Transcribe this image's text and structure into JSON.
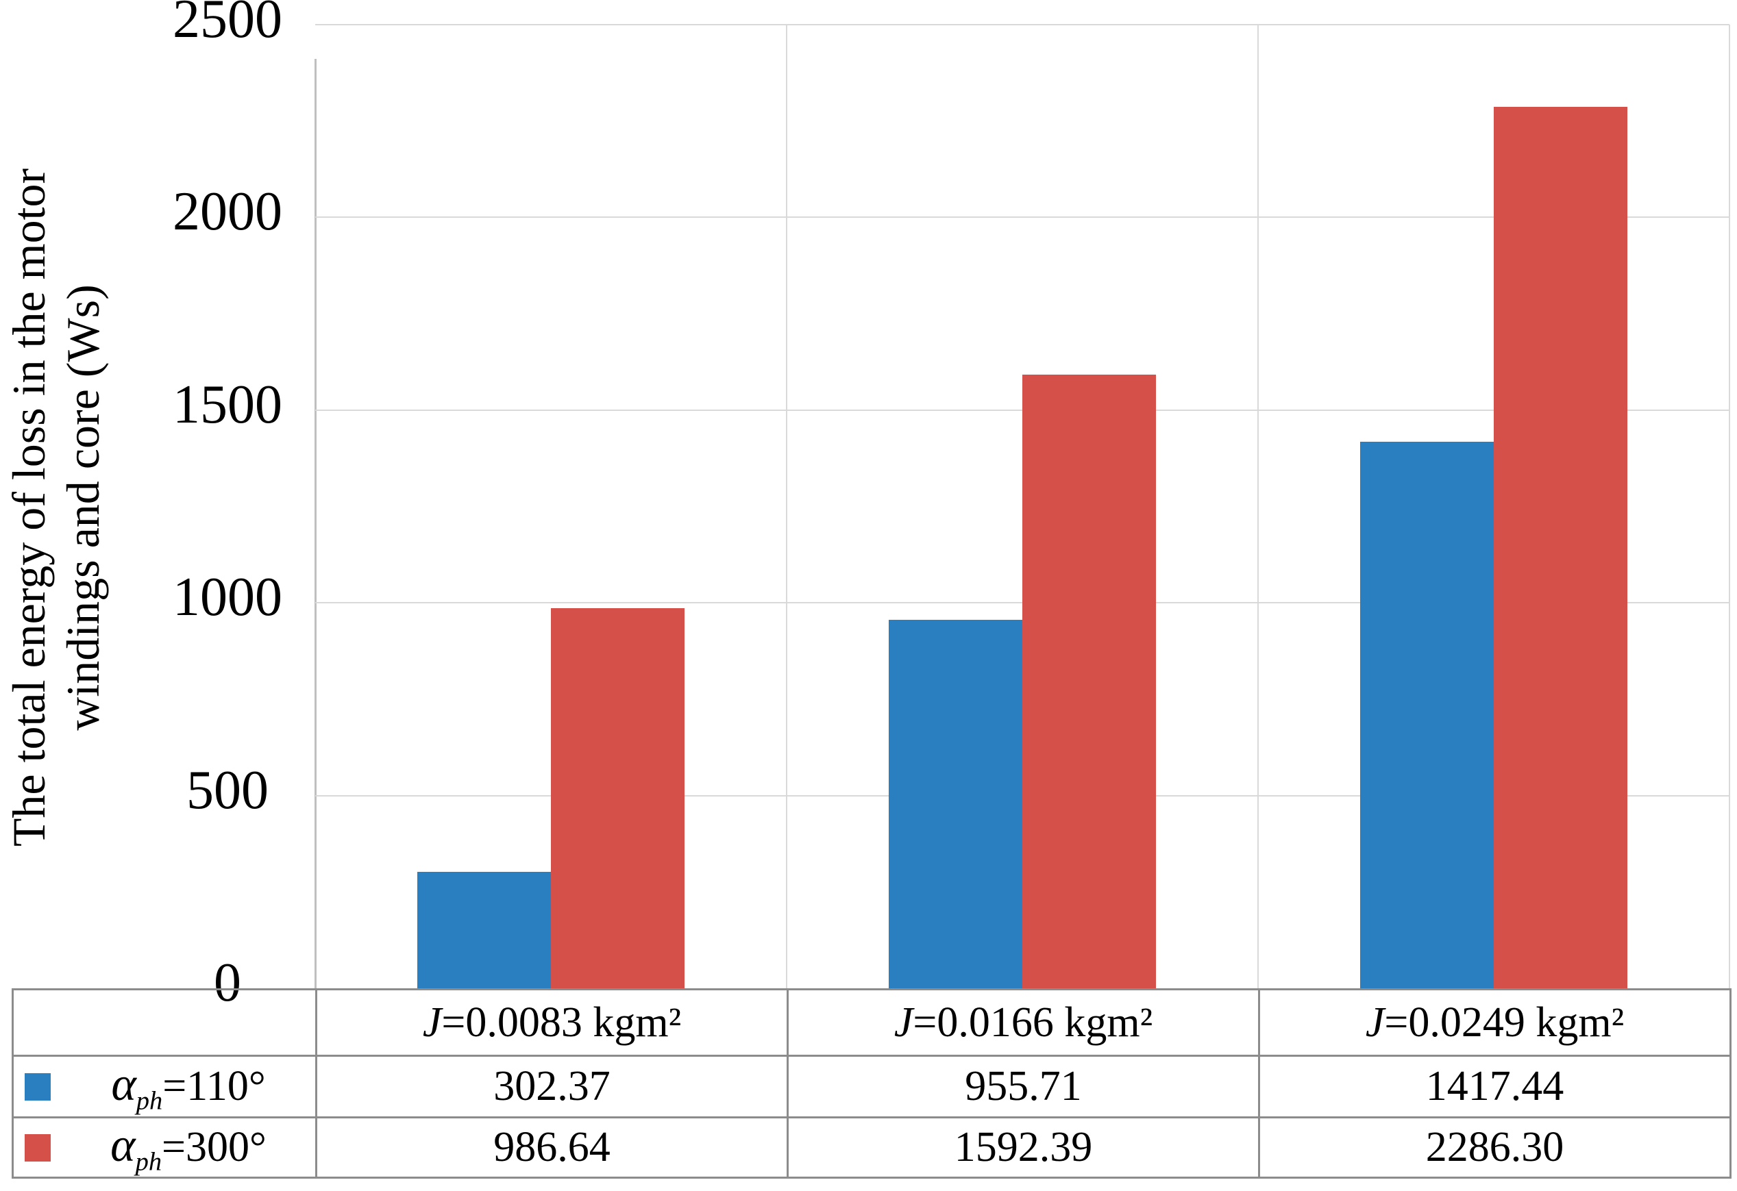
{
  "chart_data": {
    "type": "bar",
    "title": "",
    "categories": [
      "J=0.0083 kgm²",
      "J=0.0166 kgm²",
      "J=0.0249 kgm²"
    ],
    "series": [
      {
        "name": "αph=110°",
        "color": "#2a7fc0",
        "values": [
          302.37,
          955.71,
          1417.44
        ]
      },
      {
        "name": "αph=300°",
        "color": "#d6504a",
        "values": [
          986.64,
          1592.39,
          2286.3
        ]
      }
    ],
    "xlabel": "",
    "ylabel": "The total energy of loss in the motor windings and core (Ws)",
    "ylim": [
      0,
      2500
    ],
    "yticks": [
      0,
      500,
      1000,
      1500,
      2000,
      2500
    ],
    "grid": "horizontal and vertical category gridlines, light gray",
    "legend_position": "data table at bottom left"
  },
  "yaxis": {
    "title_line1": "The total energy of loss in the motor",
    "title_line2": "windings and core (Ws)"
  },
  "table": {
    "columns": [
      {
        "prefix": "J",
        "rest": "=0.0083 kgm²"
      },
      {
        "prefix": "J",
        "rest": "=0.0166 kgm²"
      },
      {
        "prefix": "J",
        "rest": "=0.0249 kgm²"
      }
    ],
    "rows": [
      {
        "symbol": "α",
        "subscript": "ph",
        "value": "=110°",
        "swatch_color": "#2a7fc0",
        "values": [
          "302.37",
          "955.71",
          "1417.44"
        ]
      },
      {
        "symbol": "α",
        "subscript": "ph",
        "value": "=300°",
        "swatch_color": "#d6504a",
        "values": [
          "986.64",
          "1592.39",
          "2286.30"
        ]
      }
    ]
  }
}
